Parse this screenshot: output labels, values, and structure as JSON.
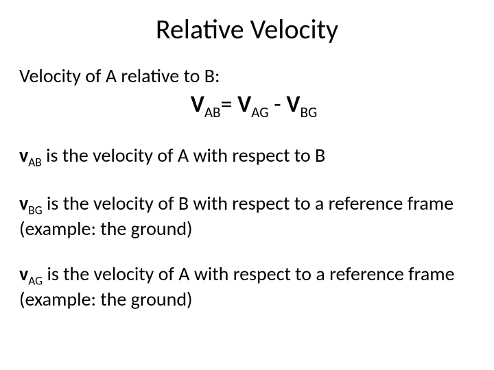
{
  "title": {
    "text": "Relative Velocity",
    "fontsize": 40,
    "color": "#000000"
  },
  "subtitle": {
    "text": "Velocity of A relative to B:",
    "fontsize": 28,
    "color": "#000000"
  },
  "equation": {
    "fontsize": 34,
    "color": "#000000",
    "lhs_base": "V",
    "lhs_sub": "AB",
    "eq": "= ",
    "r1_base": "V",
    "r1_sub": "AG",
    "op": " - ",
    "r2_base": "V",
    "r2_sub": "BG"
  },
  "defs": {
    "fontsize": 28,
    "color": "#000000",
    "d1": {
      "sym_base": "v",
      "sym_sub": "AB",
      "rest": " is the velocity of A with respect to B"
    },
    "d2": {
      "sym_base": "v",
      "sym_sub": "BG",
      "rest": " is the velocity of B with respect to a reference frame (example: the ground)"
    },
    "d3": {
      "sym_base": "v",
      "sym_sub": "AG",
      "rest": " is the velocity of A with respect to a reference frame (example: the ground)"
    }
  },
  "background_color": "#ffffff"
}
